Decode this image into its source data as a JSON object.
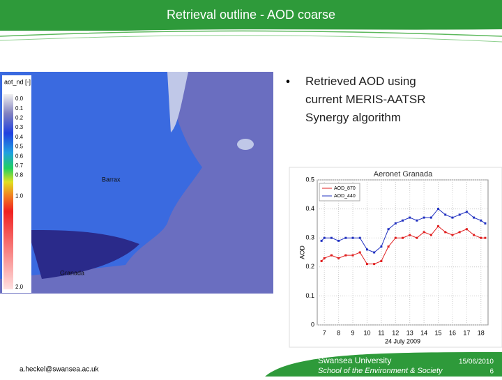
{
  "header": {
    "title": "Retrieval outline - AOD coarse"
  },
  "bullet": "Retrieved AOD using current MERIS-AATSR Synergy algorithm",
  "map": {
    "legend_title": "aot_nd [-]",
    "colorbar_labels": [
      "0.0",
      "0.1",
      "0.2",
      "0.3",
      "0.4",
      "0.5",
      "0.6",
      "0.7",
      "0.8",
      "1.0",
      "2.0"
    ],
    "places": [
      "Barrax",
      "Granada"
    ]
  },
  "chart_data": {
    "type": "line",
    "title": "Aeronet Granada",
    "xlabel": "24 July 2009",
    "ylabel": "AOD",
    "x": [
      6.8,
      7,
      7.5,
      8,
      8.5,
      9,
      9.5,
      10,
      10.5,
      11,
      11.5,
      12,
      12.5,
      13,
      13.5,
      14,
      14.5,
      15,
      15.5,
      16,
      16.5,
      17,
      17.5,
      18,
      18.3
    ],
    "series": [
      {
        "name": "AOD_870",
        "color": "#e02020",
        "values": [
          0.22,
          0.23,
          0.24,
          0.23,
          0.24,
          0.24,
          0.25,
          0.21,
          0.21,
          0.22,
          0.27,
          0.3,
          0.3,
          0.31,
          0.3,
          0.32,
          0.31,
          0.34,
          0.32,
          0.31,
          0.32,
          0.33,
          0.31,
          0.3,
          0.3
        ]
      },
      {
        "name": "AOD_440",
        "color": "#2030c0",
        "values": [
          0.29,
          0.3,
          0.3,
          0.29,
          0.3,
          0.3,
          0.3,
          0.26,
          0.25,
          0.27,
          0.33,
          0.35,
          0.36,
          0.37,
          0.36,
          0.37,
          0.37,
          0.4,
          0.38,
          0.37,
          0.38,
          0.39,
          0.37,
          0.36,
          0.35
        ]
      }
    ],
    "xlim": [
      6.5,
      18.5
    ],
    "xticks": [
      7,
      8,
      9,
      10,
      11,
      12,
      13,
      14,
      15,
      16,
      17,
      18
    ],
    "ylim": [
      0,
      0.5
    ],
    "yticks": [
      0,
      0.1,
      0.2,
      0.3,
      0.4,
      0.5
    ],
    "grid": true
  },
  "footer": {
    "email": "a.heckel@swansea.ac.uk",
    "university": "Swansea University",
    "school": "School of the Environment & Society",
    "date": "15/06/2010",
    "page": "6"
  }
}
